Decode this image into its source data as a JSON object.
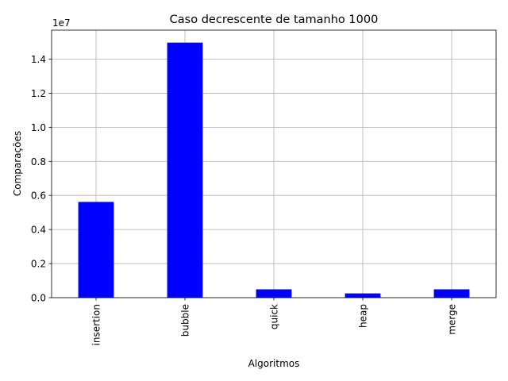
{
  "chart_data": {
    "type": "bar",
    "title": "Caso decrescente de tamanho 1000",
    "xlabel": "Algoritmos",
    "ylabel": "Comparações",
    "categories": [
      "insertion",
      "bubble",
      "quick",
      "heap",
      "merge"
    ],
    "values": [
      5620000,
      14970000,
      490000,
      250000,
      490000
    ],
    "ylim": [
      0,
      15700000
    ],
    "yticks": [
      0,
      2000000,
      4000000,
      6000000,
      8000000,
      10000000,
      12000000,
      14000000
    ],
    "ytick_labels": [
      "0.0",
      "0.2",
      "0.4",
      "0.6",
      "0.8",
      "1.0",
      "1.2",
      "1.4"
    ],
    "offset_label": "1e7",
    "bar_color": "#0000ff",
    "grid": true,
    "xtick_rotation": "vertical"
  }
}
